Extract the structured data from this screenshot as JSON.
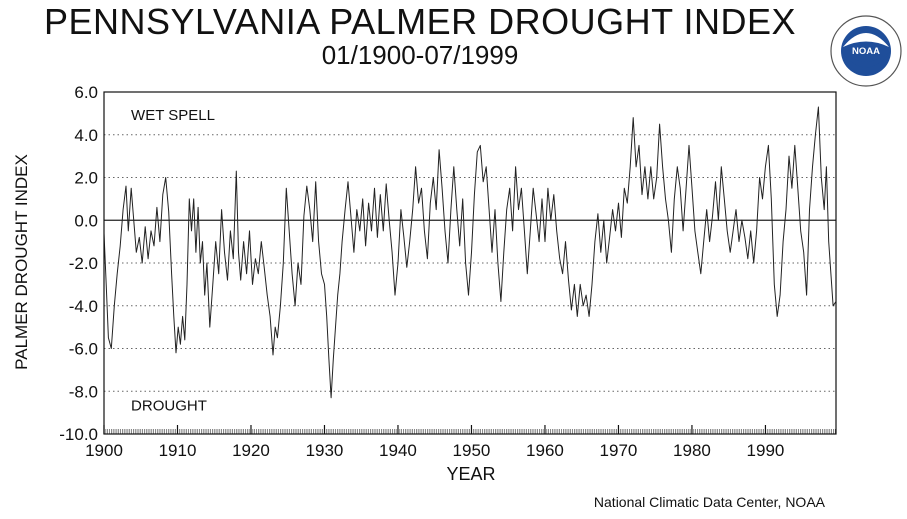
{
  "header": {
    "title": "PENNSYLVANIA PALMER DROUGHT INDEX",
    "subtitle": "01/1900-07/1999"
  },
  "logo": {
    "text": "NOAA",
    "icon": "noaa-logo-icon"
  },
  "footer": {
    "credit": "National Climatic Data Center, NOAA"
  },
  "chart_data": {
    "type": "line",
    "title": "PENNSYLVANIA PALMER DROUGHT INDEX",
    "subtitle": "01/1900-07/1999",
    "xlabel": "YEAR",
    "ylabel": "PALMER DROUGHT INDEX",
    "xlim": [
      1900,
      1999.6
    ],
    "ylim": [
      -10,
      6
    ],
    "x_ticks": [
      1900,
      1910,
      1920,
      1930,
      1940,
      1950,
      1960,
      1970,
      1980,
      1990
    ],
    "x_tick_labels": [
      "1900",
      "1910",
      "1920",
      "1930",
      "1940",
      "1950",
      "1960",
      "1970",
      "1980",
      "1990"
    ],
    "y_ticks": [
      -10,
      -8,
      -6,
      -4,
      -2,
      0,
      2,
      4,
      6
    ],
    "y_tick_labels": [
      "-10.0",
      "-8.0",
      "-6.0",
      "-4.0",
      "-2.0",
      "0.0",
      "2.0",
      "4.0",
      "6.0"
    ],
    "grid": "horizontal dotted",
    "annotations": [
      {
        "text": "WET SPELL",
        "x": 1903,
        "y": 4.7
      },
      {
        "text": "DROUGHT",
        "x": 1903,
        "y": -8.9
      }
    ],
    "series": [
      {
        "line_color": "#222222",
        "points": [
          [
            1900.0,
            -0.6
          ],
          [
            1900.3,
            -3.0
          ],
          [
            1900.6,
            -5.5
          ],
          [
            1901.0,
            -6.0
          ],
          [
            1901.4,
            -4.0
          ],
          [
            1901.8,
            -2.5
          ],
          [
            1902.2,
            -1.2
          ],
          [
            1902.6,
            0.5
          ],
          [
            1903.0,
            1.6
          ],
          [
            1903.3,
            -0.5
          ],
          [
            1903.7,
            1.5
          ],
          [
            1904.0,
            0.2
          ],
          [
            1904.4,
            -1.5
          ],
          [
            1904.8,
            -0.8
          ],
          [
            1905.2,
            -2.0
          ],
          [
            1905.6,
            -0.3
          ],
          [
            1906.0,
            -1.8
          ],
          [
            1906.4,
            -0.5
          ],
          [
            1906.8,
            -1.2
          ],
          [
            1907.2,
            0.6
          ],
          [
            1907.6,
            -1.0
          ],
          [
            1908.0,
            1.2
          ],
          [
            1908.4,
            2.0
          ],
          [
            1908.8,
            0.4
          ],
          [
            1909.2,
            -2.5
          ],
          [
            1909.5,
            -4.5
          ],
          [
            1909.8,
            -6.2
          ],
          [
            1910.1,
            -5.0
          ],
          [
            1910.4,
            -5.8
          ],
          [
            1910.7,
            -4.5
          ],
          [
            1911.0,
            -5.6
          ],
          [
            1911.3,
            -3.0
          ],
          [
            1911.6,
            1.0
          ],
          [
            1911.9,
            -0.5
          ],
          [
            1912.2,
            1.0
          ],
          [
            1912.5,
            -1.5
          ],
          [
            1912.8,
            0.6
          ],
          [
            1913.1,
            -2.0
          ],
          [
            1913.4,
            -1.0
          ],
          [
            1913.7,
            -3.5
          ],
          [
            1914.0,
            -2.0
          ],
          [
            1914.4,
            -5.0
          ],
          [
            1914.8,
            -3.0
          ],
          [
            1915.2,
            -1.0
          ],
          [
            1915.6,
            -2.5
          ],
          [
            1916.0,
            0.5
          ],
          [
            1916.4,
            -1.5
          ],
          [
            1916.8,
            -2.8
          ],
          [
            1917.2,
            -0.5
          ],
          [
            1917.6,
            -1.8
          ],
          [
            1918.0,
            2.3
          ],
          [
            1918.3,
            -1.5
          ],
          [
            1918.6,
            -2.8
          ],
          [
            1919.0,
            -1.0
          ],
          [
            1919.4,
            -2.5
          ],
          [
            1919.8,
            -0.5
          ],
          [
            1920.2,
            -3.0
          ],
          [
            1920.6,
            -1.8
          ],
          [
            1921.0,
            -2.5
          ],
          [
            1921.4,
            -1.0
          ],
          [
            1921.8,
            -2.2
          ],
          [
            1922.2,
            -3.5
          ],
          [
            1922.6,
            -4.5
          ],
          [
            1923.0,
            -6.3
          ],
          [
            1923.3,
            -5.0
          ],
          [
            1923.6,
            -5.5
          ],
          [
            1924.0,
            -4.0
          ],
          [
            1924.4,
            -2.0
          ],
          [
            1924.8,
            1.5
          ],
          [
            1925.2,
            -0.5
          ],
          [
            1925.6,
            -2.5
          ],
          [
            1926.0,
            -4.0
          ],
          [
            1926.4,
            -2.0
          ],
          [
            1926.8,
            -3.0
          ],
          [
            1927.2,
            0.2
          ],
          [
            1927.6,
            1.6
          ],
          [
            1928.0,
            0.5
          ],
          [
            1928.4,
            -1.0
          ],
          [
            1928.8,
            1.8
          ],
          [
            1929.2,
            -1.0
          ],
          [
            1929.6,
            -2.5
          ],
          [
            1930.0,
            -3.0
          ],
          [
            1930.3,
            -4.5
          ],
          [
            1930.6,
            -6.5
          ],
          [
            1930.9,
            -8.3
          ],
          [
            1931.2,
            -6.5
          ],
          [
            1931.5,
            -5.0
          ],
          [
            1931.8,
            -3.5
          ],
          [
            1932.1,
            -2.5
          ],
          [
            1932.4,
            -1.0
          ],
          [
            1932.8,
            0.5
          ],
          [
            1933.2,
            1.8
          ],
          [
            1933.6,
            0.2
          ],
          [
            1934.0,
            -1.5
          ],
          [
            1934.4,
            0.5
          ],
          [
            1934.8,
            -0.5
          ],
          [
            1935.2,
            1.0
          ],
          [
            1935.6,
            -1.2
          ],
          [
            1936.0,
            0.8
          ],
          [
            1936.4,
            -0.5
          ],
          [
            1936.8,
            1.5
          ],
          [
            1937.2,
            -0.8
          ],
          [
            1937.6,
            1.2
          ],
          [
            1938.0,
            -0.5
          ],
          [
            1938.4,
            1.7
          ],
          [
            1938.8,
            0.0
          ],
          [
            1939.2,
            -1.5
          ],
          [
            1939.6,
            -3.5
          ],
          [
            1940.0,
            -2.0
          ],
          [
            1940.4,
            0.5
          ],
          [
            1940.8,
            -0.8
          ],
          [
            1941.2,
            -2.2
          ],
          [
            1941.6,
            -1.0
          ],
          [
            1942.0,
            0.5
          ],
          [
            1942.4,
            2.5
          ],
          [
            1942.8,
            0.8
          ],
          [
            1943.2,
            1.5
          ],
          [
            1943.6,
            -0.5
          ],
          [
            1944.0,
            -1.8
          ],
          [
            1944.4,
            0.8
          ],
          [
            1944.8,
            2.0
          ],
          [
            1945.2,
            0.5
          ],
          [
            1945.6,
            3.3
          ],
          [
            1946.0,
            1.5
          ],
          [
            1946.4,
            -0.5
          ],
          [
            1946.8,
            -2.0
          ],
          [
            1947.2,
            0.5
          ],
          [
            1947.6,
            2.5
          ],
          [
            1948.0,
            0.5
          ],
          [
            1948.4,
            -1.2
          ],
          [
            1948.8,
            1.0
          ],
          [
            1949.2,
            -2.0
          ],
          [
            1949.6,
            -3.5
          ],
          [
            1950.0,
            -1.5
          ],
          [
            1950.4,
            1.2
          ],
          [
            1950.8,
            3.2
          ],
          [
            1951.2,
            3.5
          ],
          [
            1951.6,
            1.8
          ],
          [
            1952.0,
            2.5
          ],
          [
            1952.4,
            0.5
          ],
          [
            1952.8,
            -1.5
          ],
          [
            1953.2,
            0.5
          ],
          [
            1953.6,
            -2.0
          ],
          [
            1954.0,
            -3.8
          ],
          [
            1954.4,
            -1.5
          ],
          [
            1954.8,
            0.5
          ],
          [
            1955.2,
            1.5
          ],
          [
            1955.6,
            -0.5
          ],
          [
            1956.0,
            2.5
          ],
          [
            1956.4,
            0.5
          ],
          [
            1956.8,
            1.5
          ],
          [
            1957.2,
            -0.5
          ],
          [
            1957.6,
            -2.5
          ],
          [
            1958.0,
            -0.5
          ],
          [
            1958.4,
            1.5
          ],
          [
            1958.8,
            0.3
          ],
          [
            1959.2,
            -1.0
          ],
          [
            1959.6,
            1.0
          ],
          [
            1960.0,
            -1.0
          ],
          [
            1960.4,
            1.5
          ],
          [
            1960.8,
            0.0
          ],
          [
            1961.2,
            1.2
          ],
          [
            1961.6,
            -0.5
          ],
          [
            1962.0,
            -1.8
          ],
          [
            1962.4,
            -2.5
          ],
          [
            1962.8,
            -1.0
          ],
          [
            1963.2,
            -2.8
          ],
          [
            1963.6,
            -4.2
          ],
          [
            1964.0,
            -3.0
          ],
          [
            1964.4,
            -4.5
          ],
          [
            1964.8,
            -3.0
          ],
          [
            1965.2,
            -4.0
          ],
          [
            1965.6,
            -3.5
          ],
          [
            1966.0,
            -4.5
          ],
          [
            1966.4,
            -3.0
          ],
          [
            1966.8,
            -1.0
          ],
          [
            1967.2,
            0.3
          ],
          [
            1967.6,
            -1.5
          ],
          [
            1968.0,
            0.0
          ],
          [
            1968.4,
            -2.0
          ],
          [
            1968.8,
            -0.8
          ],
          [
            1969.2,
            0.5
          ],
          [
            1969.6,
            -0.5
          ],
          [
            1970.0,
            0.8
          ],
          [
            1970.4,
            -0.8
          ],
          [
            1970.8,
            1.5
          ],
          [
            1971.2,
            0.8
          ],
          [
            1971.6,
            2.5
          ],
          [
            1972.0,
            4.8
          ],
          [
            1972.4,
            2.5
          ],
          [
            1972.8,
            3.5
          ],
          [
            1973.2,
            1.2
          ],
          [
            1973.6,
            2.5
          ],
          [
            1974.0,
            1.0
          ],
          [
            1974.4,
            2.5
          ],
          [
            1974.8,
            1.0
          ],
          [
            1975.2,
            2.0
          ],
          [
            1975.6,
            4.5
          ],
          [
            1976.0,
            2.5
          ],
          [
            1976.4,
            1.0
          ],
          [
            1976.8,
            0.0
          ],
          [
            1977.2,
            -1.5
          ],
          [
            1977.6,
            1.0
          ],
          [
            1978.0,
            2.5
          ],
          [
            1978.4,
            1.5
          ],
          [
            1978.8,
            -0.5
          ],
          [
            1979.2,
            1.5
          ],
          [
            1979.6,
            3.5
          ],
          [
            1980.0,
            1.5
          ],
          [
            1980.4,
            -0.5
          ],
          [
            1980.8,
            -1.5
          ],
          [
            1981.2,
            -2.5
          ],
          [
            1981.6,
            -1.0
          ],
          [
            1982.0,
            0.5
          ],
          [
            1982.4,
            -1.0
          ],
          [
            1982.8,
            0.2
          ],
          [
            1983.2,
            1.8
          ],
          [
            1983.6,
            0.0
          ],
          [
            1984.0,
            2.5
          ],
          [
            1984.4,
            1.0
          ],
          [
            1984.8,
            -0.5
          ],
          [
            1985.2,
            -1.5
          ],
          [
            1985.6,
            -0.5
          ],
          [
            1986.0,
            0.5
          ],
          [
            1986.4,
            -1.0
          ],
          [
            1986.8,
            0.0
          ],
          [
            1987.2,
            -0.8
          ],
          [
            1987.6,
            -1.8
          ],
          [
            1988.0,
            -0.5
          ],
          [
            1988.4,
            -2.0
          ],
          [
            1988.8,
            -0.5
          ],
          [
            1989.2,
            2.0
          ],
          [
            1989.6,
            1.0
          ],
          [
            1990.0,
            2.5
          ],
          [
            1990.4,
            3.5
          ],
          [
            1990.8,
            1.0
          ],
          [
            1991.2,
            -3.0
          ],
          [
            1991.6,
            -4.5
          ],
          [
            1992.0,
            -3.5
          ],
          [
            1992.4,
            -1.0
          ],
          [
            1992.8,
            0.5
          ],
          [
            1993.2,
            3.0
          ],
          [
            1993.6,
            1.5
          ],
          [
            1994.0,
            3.5
          ],
          [
            1994.4,
            1.5
          ],
          [
            1994.8,
            -0.5
          ],
          [
            1995.2,
            -1.5
          ],
          [
            1995.6,
            -3.5
          ],
          [
            1996.0,
            0.5
          ],
          [
            1996.4,
            2.5
          ],
          [
            1996.8,
            4.0
          ],
          [
            1997.2,
            5.3
          ],
          [
            1997.6,
            2.0
          ],
          [
            1998.0,
            0.5
          ],
          [
            1998.3,
            2.5
          ],
          [
            1998.6,
            -1.0
          ],
          [
            1998.9,
            -2.5
          ],
          [
            1999.2,
            -4.0
          ],
          [
            1999.6,
            -3.8
          ]
        ]
      }
    ]
  }
}
